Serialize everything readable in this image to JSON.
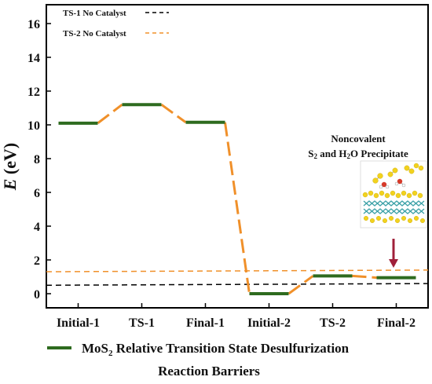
{
  "chart_data": {
    "type": "line",
    "title": "",
    "xlabel": "",
    "ylabel_main": "E",
    "ylabel_unit": " (eV)",
    "ylim": [
      -0.6,
      17
    ],
    "yticks": [
      0,
      2,
      4,
      6,
      8,
      10,
      12,
      14,
      16
    ],
    "categories": [
      "Initial-1",
      "TS-1",
      "Final-1",
      "Initial-2",
      "TS-2",
      "Final-2"
    ],
    "series": [
      {
        "name": "MoS2 Relative Transition State Desulfurization Reaction Barriers",
        "values": [
          10.1,
          11.2,
          10.15,
          0.0,
          1.05,
          0.95
        ],
        "level_color": "#2e6b1f",
        "connector_color": "#f0902a"
      }
    ],
    "reference_lines": [
      {
        "name": "TS-1 No Catalyst",
        "color": "#000000",
        "y_start": 0.5,
        "y_end": 0.6
      },
      {
        "name": "TS-2 No Catalyst",
        "color": "#f0902a",
        "y_start": 1.3,
        "y_end": 1.4
      }
    ],
    "legend_bottom": {
      "line1_prefix": "MoS",
      "line1_sub": "2",
      "line1_suffix": " Relative Transition State Desulfurization",
      "line2": "Reaction Barriers"
    },
    "annotation": {
      "line1": "Noncovalent",
      "line2_parts": [
        "S",
        "2",
        " and H",
        "2",
        "O Precipitate"
      ],
      "points_to": "Final-2"
    },
    "legend_position": "top-left",
    "grid": false,
    "colors": {
      "axis": "#000000",
      "level": "#2e6b1f",
      "connector": "#f0902a",
      "arrow": "#a0203a",
      "molecule_s": "#f2d21e",
      "molecule_o": "#d63a2a",
      "molecule_h": "#ffffff",
      "substrate_mo": "#3fa2a8"
    }
  }
}
